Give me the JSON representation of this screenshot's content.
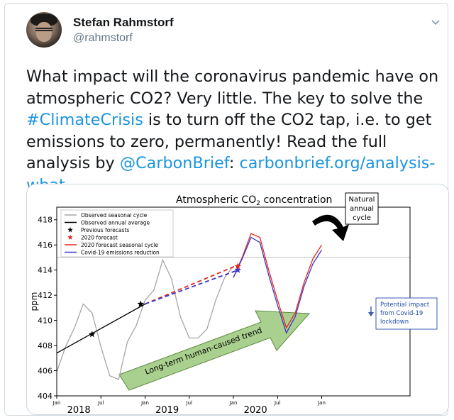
{
  "tweet": {
    "author_name": "Stefan Rahmstorf",
    "author_handle": "@rahmstorf",
    "text_1": "What impact will the coronavirus pandemic have on atmospheric CO2? Very little. The key to solve the ",
    "hashtag": "#ClimateCrisis",
    "text_2": " is to turn off the CO2 tap, i.e. to get emissions to zero, permanently! Read the full analysis by ",
    "mention": "@CarbonBrief",
    "text_3": ": ",
    "link": "carbonbrief.org/analysis-what-…",
    "icons": {
      "menu": "chevron-down-icon"
    },
    "colors": {
      "link": "#1b95e0",
      "name": "#14171a",
      "handle": "#657786"
    }
  },
  "chart_data": {
    "type": "line",
    "title": "Atmospheric CO",
    "title_sub": "2",
    "title_suffix": " concentration",
    "ylabel": "ppm",
    "ylim": [
      404,
      419
    ],
    "xlim": [
      2017.0,
      2021.0
    ],
    "yticks": [
      404,
      406,
      408,
      410,
      412,
      414,
      416,
      418
    ],
    "xticks_minor": [
      {
        "x": 2017.0,
        "label": "Jan"
      },
      {
        "x": 2017.5,
        "label": "Jul"
      },
      {
        "x": 2018.0,
        "label": "Jan"
      },
      {
        "x": 2018.5,
        "label": "Jul"
      },
      {
        "x": 2019.0,
        "label": "Jan"
      },
      {
        "x": 2019.5,
        "label": "Jul"
      },
      {
        "x": 2020.0,
        "label": "Jan"
      }
    ],
    "xticks_major": [
      {
        "x": 2017.25,
        "label": "2018"
      },
      {
        "x": 2018.25,
        "label": "2019"
      },
      {
        "x": 2019.25,
        "label": "2020"
      }
    ],
    "legend": {
      "placement": "top-left",
      "entries": [
        {
          "label": "Observed seasonal cycle",
          "color": "#a6a6a6",
          "kind": "line"
        },
        {
          "label": "Observed annual average",
          "color": "#000000",
          "kind": "line"
        },
        {
          "label": "Previous forecasts",
          "color": "#000000",
          "kind": "star"
        },
        {
          "label": "2020 forecast",
          "color": "#e8261c",
          "kind": "star"
        },
        {
          "label": "2020 forecast seasonal cycle",
          "color": "#e8261c",
          "kind": "line"
        },
        {
          "label": "Covid-19 emissions reduction",
          "color": "#3b36c7",
          "kind": "line"
        }
      ]
    },
    "series": [
      {
        "name": "Observed seasonal cycle",
        "color": "#a6a6a6",
        "x": [
          2017.0,
          2017.1,
          2017.2,
          2017.3,
          2017.4,
          2017.5,
          2017.6,
          2017.7,
          2017.8,
          2017.9,
          2018.0,
          2018.1,
          2018.2,
          2018.3,
          2018.4,
          2018.5,
          2018.6,
          2018.7,
          2018.8,
          2018.9,
          2019.0
        ],
        "y": [
          405.9,
          407.9,
          409.4,
          411.3,
          410.6,
          407.9,
          405.6,
          405.3,
          408.3,
          409.6,
          411.6,
          412.4,
          414.8,
          413.3,
          410.3,
          408.6,
          408.6,
          409.3,
          411.6,
          413.4,
          414.3
        ]
      },
      {
        "name": "Observed annual average",
        "color": "#000000",
        "x": [
          2017.0,
          2018.0
        ],
        "y": [
          407.4,
          411.3
        ]
      },
      {
        "name": "2020 forecast seasonal cycle",
        "color": "#e8261c",
        "x": [
          2019.0,
          2019.1,
          2019.2,
          2019.3,
          2019.4,
          2019.5,
          2019.6,
          2019.7,
          2019.8,
          2019.9,
          2020.0
        ],
        "y": [
          413.4,
          415.0,
          416.9,
          416.6,
          414.0,
          411.6,
          409.4,
          410.6,
          413.0,
          414.9,
          416.0
        ]
      },
      {
        "name": "Covid-19 emissions reduction",
        "color": "#3b36c7",
        "x": [
          2019.0,
          2019.1,
          2019.2,
          2019.3,
          2019.4,
          2019.5,
          2019.6,
          2019.7,
          2019.8,
          2019.9,
          2020.0
        ],
        "y": [
          413.4,
          414.9,
          416.6,
          416.2,
          413.6,
          411.2,
          409.0,
          410.3,
          412.7,
          414.5,
          415.6
        ]
      },
      {
        "name": "2020 forecast trend",
        "color": "#e8261c",
        "dashed": true,
        "x": [
          2018.0,
          2019.05
        ],
        "y": [
          411.3,
          414.4
        ]
      },
      {
        "name": "Covid trend",
        "color": "#3b36c7",
        "dashed": true,
        "x": [
          2018.0,
          2019.05
        ],
        "y": [
          411.3,
          414.0
        ]
      }
    ],
    "stars": [
      {
        "x": 2017.4,
        "y": 408.9,
        "color": "#000000"
      },
      {
        "x": 2017.95,
        "y": 411.3,
        "color": "#000000"
      },
      {
        "x": 2019.05,
        "y": 414.3,
        "color": "#e8261c"
      },
      {
        "x": 2019.05,
        "y": 414.0,
        "color": "#3b36c7"
      }
    ],
    "annotations": {
      "natural": [
        "Natural",
        "annual",
        "cycle"
      ],
      "trend_arrow": "Long-term human-caused trend",
      "impact": [
        "Potential impact",
        "from Covid-19",
        "lockdown"
      ]
    },
    "grid": false
  }
}
